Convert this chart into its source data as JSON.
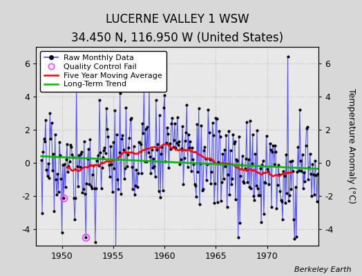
{
  "title": "LUCERNE VALLEY 1 WSW",
  "subtitle": "34.450 N, 116.950 W (United States)",
  "ylabel": "Temperature Anomaly (°C)",
  "xlabel_credit": "Berkeley Earth",
  "xlim": [
    1947.5,
    1975.0
  ],
  "ylim": [
    -5.0,
    7.0
  ],
  "yticks": [
    -4,
    -2,
    0,
    2,
    4,
    6
  ],
  "xticks": [
    1950,
    1955,
    1960,
    1965,
    1970
  ],
  "background_color": "#d8d8d8",
  "plot_background": "#e8e8e8",
  "raw_line_color": "#4444ff",
  "raw_marker_color": "#000000",
  "moving_avg_color": "#ff0000",
  "trend_color": "#00bb00",
  "qc_fail_color": "#ff44ff",
  "title_fontsize": 12,
  "subtitle_fontsize": 9,
  "legend_fontsize": 8,
  "seed": 17,
  "start_year": 1948,
  "end_year": 1974
}
